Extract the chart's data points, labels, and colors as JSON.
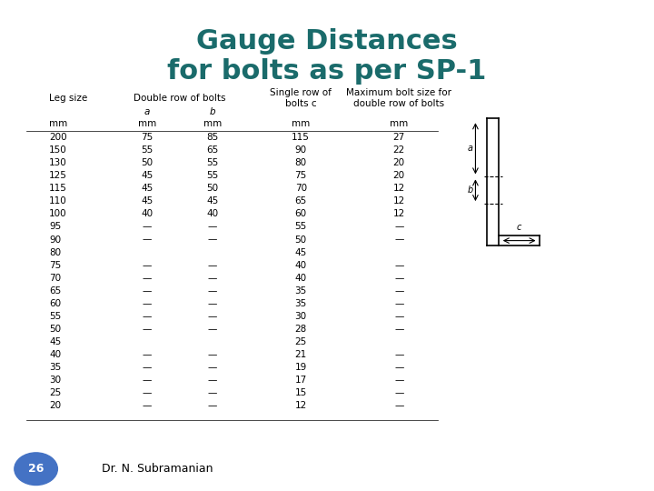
{
  "title_line1": "Gauge Distances",
  "title_line2": "for bolts as per SP-1",
  "title_color": "#1a6b6b",
  "background_color": "#ffffff",
  "border_color": "#cccccc",
  "slide_number": "26",
  "slide_number_bg": "#4472c4",
  "author": "Dr. N. Subramanian",
  "table_data": [
    [
      "200",
      "75",
      "85",
      "115",
      "27"
    ],
    [
      "150",
      "55",
      "65",
      "90",
      "22"
    ],
    [
      "130",
      "50",
      "55",
      "80",
      "20"
    ],
    [
      "125",
      "45",
      "55",
      "75",
      "20"
    ],
    [
      "115",
      "45",
      "50",
      "70",
      "12"
    ],
    [
      "110",
      "45",
      "45",
      "65",
      "12"
    ],
    [
      "100",
      "40",
      "40",
      "60",
      "12"
    ],
    [
      "95",
      "—",
      "—",
      "55",
      "—"
    ],
    [
      "90",
      "—",
      "—",
      "50",
      "—"
    ],
    [
      "80",
      "",
      "",
      "45",
      ""
    ],
    [
      "75",
      "—",
      "—",
      "40",
      "—"
    ],
    [
      "70",
      "—",
      "—",
      "40",
      "—"
    ],
    [
      "65",
      "—",
      "—",
      "35",
      "—"
    ],
    [
      "60",
      "—",
      "—",
      "35",
      "—"
    ],
    [
      "55",
      "—",
      "—",
      "30",
      "—"
    ],
    [
      "50",
      "—",
      "—",
      "28",
      "—"
    ],
    [
      "45",
      "",
      "",
      "25",
      ""
    ],
    [
      "40",
      "—",
      "—",
      "21",
      "—"
    ],
    [
      "35",
      "—",
      "—",
      "19",
      "—"
    ],
    [
      "30",
      "—",
      "—",
      "17",
      "—"
    ],
    [
      "25",
      "—",
      "—",
      "15",
      "—"
    ],
    [
      "20",
      "—",
      "—",
      "12",
      "—"
    ]
  ],
  "col_leg": 0.075,
  "col_a": 0.225,
  "col_b": 0.325,
  "col_single": 0.46,
  "col_max": 0.61,
  "font_size_title": 22,
  "font_size_header": 7.5,
  "font_size_data": 7.5
}
